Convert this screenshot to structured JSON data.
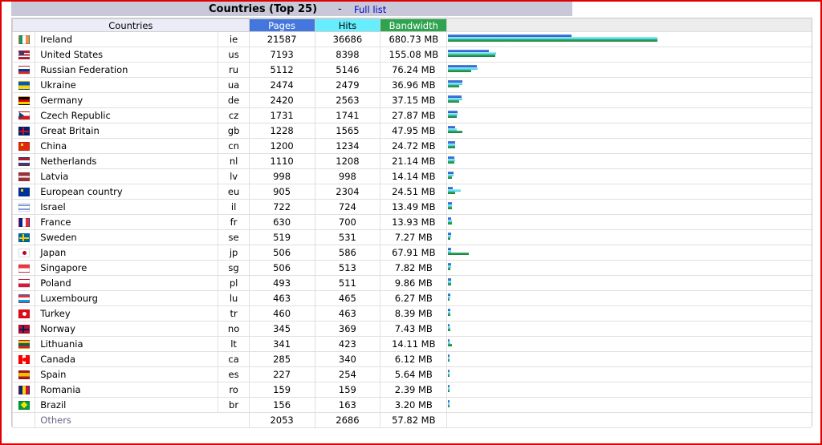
{
  "title": "Countries (Top 25)",
  "title_separator": "-",
  "full_list_link": "Full list",
  "headers": {
    "countries": "Countries",
    "pages": "Pages",
    "hits": "Hits",
    "bandwidth": "Bandwidth"
  },
  "max": {
    "pages": 21587,
    "hits": 36686,
    "bandwidth_mb": 680.73
  },
  "rows": [
    {
      "name": "Ireland",
      "code": "ie",
      "pages": "21587",
      "hits": "36686",
      "bandwidth": "680.73 MB",
      "bw": 680.73,
      "flag": [
        "#169b62",
        "#ffffff",
        "#ff883e"
      ],
      "flag_dir": "v"
    },
    {
      "name": "United States",
      "code": "us",
      "pages": "7193",
      "hits": "8398",
      "bandwidth": "155.08 MB",
      "bw": 155.08,
      "flag": [
        "#b22234",
        "#ffffff",
        "#b22234",
        "#ffffff",
        "#b22234"
      ],
      "flag_dir": "h",
      "canton": "#3c3b6e"
    },
    {
      "name": "Russian Federation",
      "code": "ru",
      "pages": "5112",
      "hits": "5146",
      "bandwidth": "76.24 MB",
      "bw": 76.24,
      "flag": [
        "#ffffff",
        "#0039a6",
        "#d52b1e"
      ],
      "flag_dir": "h"
    },
    {
      "name": "Ukraine",
      "code": "ua",
      "pages": "2474",
      "hits": "2479",
      "bandwidth": "36.96 MB",
      "bw": 36.96,
      "flag": [
        "#005bbb",
        "#ffd500"
      ],
      "flag_dir": "h"
    },
    {
      "name": "Germany",
      "code": "de",
      "pages": "2420",
      "hits": "2563",
      "bandwidth": "37.15 MB",
      "bw": 37.15,
      "flag": [
        "#000000",
        "#dd0000",
        "#ffce00"
      ],
      "flag_dir": "h"
    },
    {
      "name": "Czech Republic",
      "code": "cz",
      "pages": "1731",
      "hits": "1741",
      "bandwidth": "27.87 MB",
      "bw": 27.87,
      "flag": [
        "#ffffff",
        "#d7141a"
      ],
      "flag_dir": "h",
      "triangle": "#11457e"
    },
    {
      "name": "Great Britain",
      "code": "gb",
      "pages": "1228",
      "hits": "1565",
      "bandwidth": "47.95 MB",
      "bw": 47.95,
      "flag": [
        "#012169"
      ],
      "flag_dir": "h",
      "cross": "#c8102e"
    },
    {
      "name": "China",
      "code": "cn",
      "pages": "1200",
      "hits": "1234",
      "bandwidth": "24.72 MB",
      "bw": 24.72,
      "flag": [
        "#de2910"
      ],
      "flag_dir": "h",
      "star": "#ffde00"
    },
    {
      "name": "Netherlands",
      "code": "nl",
      "pages": "1110",
      "hits": "1208",
      "bandwidth": "21.14 MB",
      "bw": 21.14,
      "flag": [
        "#ae1c28",
        "#ffffff",
        "#21468b"
      ],
      "flag_dir": "h"
    },
    {
      "name": "Latvia",
      "code": "lv",
      "pages": "998",
      "hits": "998",
      "bandwidth": "14.14 MB",
      "bw": 14.14,
      "flag": [
        "#9e3039",
        "#9e3039",
        "#ffffff",
        "#9e3039",
        "#9e3039"
      ],
      "flag_dir": "h"
    },
    {
      "name": "European country",
      "code": "eu",
      "pages": "905",
      "hits": "2304",
      "bandwidth": "24.51 MB",
      "bw": 24.51,
      "flag": [
        "#003399"
      ],
      "flag_dir": "h",
      "star": "#ffcc00"
    },
    {
      "name": "Israel",
      "code": "il",
      "pages": "722",
      "hits": "724",
      "bandwidth": "13.49 MB",
      "bw": 13.49,
      "flag": [
        "#ffffff",
        "#0038b8",
        "#ffffff",
        "#ffffff",
        "#ffffff",
        "#0038b8",
        "#ffffff"
      ],
      "flag_dir": "h"
    },
    {
      "name": "France",
      "code": "fr",
      "pages": "630",
      "hits": "700",
      "bandwidth": "13.93 MB",
      "bw": 13.93,
      "flag": [
        "#002395",
        "#ffffff",
        "#ed2939"
      ],
      "flag_dir": "v"
    },
    {
      "name": "Sweden",
      "code": "se",
      "pages": "519",
      "hits": "531",
      "bandwidth": "7.27 MB",
      "bw": 7.27,
      "flag": [
        "#006aa7"
      ],
      "flag_dir": "h",
      "cross": "#fecc00"
    },
    {
      "name": "Japan",
      "code": "jp",
      "pages": "506",
      "hits": "586",
      "bandwidth": "67.91 MB",
      "bw": 67.91,
      "flag": [
        "#ffffff"
      ],
      "flag_dir": "h",
      "disc": "#bc002d"
    },
    {
      "name": "Singapore",
      "code": "sg",
      "pages": "506",
      "hits": "513",
      "bandwidth": "7.82 MB",
      "bw": 7.82,
      "flag": [
        "#ef3340",
        "#ffffff"
      ],
      "flag_dir": "h"
    },
    {
      "name": "Poland",
      "code": "pl",
      "pages": "493",
      "hits": "511",
      "bandwidth": "9.86 MB",
      "bw": 9.86,
      "flag": [
        "#ffffff",
        "#dc143c"
      ],
      "flag_dir": "h"
    },
    {
      "name": "Luxembourg",
      "code": "lu",
      "pages": "463",
      "hits": "465",
      "bandwidth": "6.27 MB",
      "bw": 6.27,
      "flag": [
        "#ed2939",
        "#ffffff",
        "#00a1de"
      ],
      "flag_dir": "h"
    },
    {
      "name": "Turkey",
      "code": "tr",
      "pages": "460",
      "hits": "463",
      "bandwidth": "8.39 MB",
      "bw": 8.39,
      "flag": [
        "#e30a17"
      ],
      "flag_dir": "h",
      "disc": "#ffffff"
    },
    {
      "name": "Norway",
      "code": "no",
      "pages": "345",
      "hits": "369",
      "bandwidth": "7.43 MB",
      "bw": 7.43,
      "flag": [
        "#ba0c2f"
      ],
      "flag_dir": "h",
      "cross": "#00205b"
    },
    {
      "name": "Lithuania",
      "code": "lt",
      "pages": "341",
      "hits": "423",
      "bandwidth": "14.11 MB",
      "bw": 14.11,
      "flag": [
        "#fdb913",
        "#006a44",
        "#c1272d"
      ],
      "flag_dir": "h"
    },
    {
      "name": "Canada",
      "code": "ca",
      "pages": "285",
      "hits": "340",
      "bandwidth": "6.12 MB",
      "bw": 6.12,
      "flag": [
        "#ff0000",
        "#ffffff",
        "#ff0000"
      ],
      "flag_dir": "v",
      "disc": "#ff0000"
    },
    {
      "name": "Spain",
      "code": "es",
      "pages": "227",
      "hits": "254",
      "bandwidth": "5.64 MB",
      "bw": 5.64,
      "flag": [
        "#aa151b",
        "#f1bf00",
        "#f1bf00",
        "#aa151b"
      ],
      "flag_dir": "h"
    },
    {
      "name": "Romania",
      "code": "ro",
      "pages": "159",
      "hits": "159",
      "bandwidth": "2.39 MB",
      "bw": 2.39,
      "flag": [
        "#002b7f",
        "#fcd116",
        "#ce1126"
      ],
      "flag_dir": "v"
    },
    {
      "name": "Brazil",
      "code": "br",
      "pages": "156",
      "hits": "163",
      "bandwidth": "3.20 MB",
      "bw": 3.2,
      "flag": [
        "#009c3b"
      ],
      "flag_dir": "h",
      "diamond": "#ffdf00"
    }
  ],
  "others": {
    "name": "Others",
    "pages": "2053",
    "hits": "2686",
    "bandwidth": "57.82 MB"
  }
}
